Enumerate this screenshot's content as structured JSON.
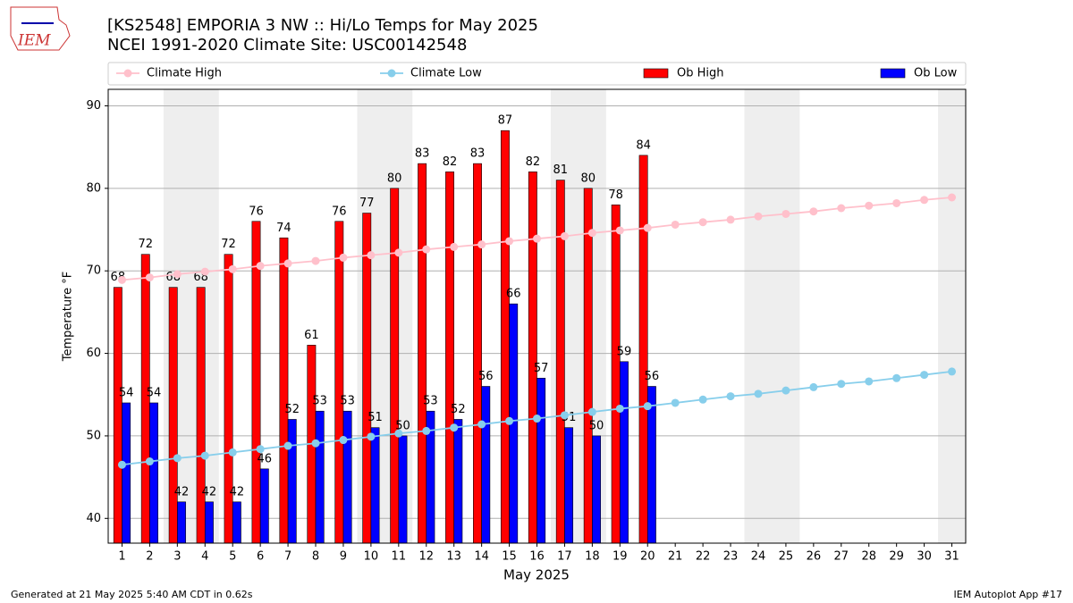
{
  "logo_text": "IEM",
  "footer_left": "Generated at 21 May 2025 5:40 AM CDT in 0.62s",
  "footer_right": "IEM Autoplot App #17",
  "chart_data": {
    "type": "bar",
    "title": "[KS2548] EMPORIA 3 NW :: Hi/Lo Temps for May 2025",
    "subtitle": "NCEI 1991-2020 Climate Site: USC00142548",
    "x_label": "May 2025",
    "y_label": "Temperature °F",
    "categories": [
      "1",
      "2",
      "3",
      "4",
      "5",
      "6",
      "7",
      "8",
      "9",
      "10",
      "11",
      "12",
      "13",
      "14",
      "15",
      "16",
      "17",
      "18",
      "19",
      "20",
      "21",
      "22",
      "23",
      "24",
      "25",
      "26",
      "27",
      "28",
      "29",
      "30",
      "31"
    ],
    "shaded_spans": [
      [
        3,
        4
      ],
      [
        10,
        11
      ],
      [
        17,
        18
      ],
      [
        24,
        25
      ],
      [
        31,
        31
      ]
    ],
    "series": [
      {
        "name": "Climate High",
        "kind": "line",
        "color": "#ffc0cb",
        "values": [
          68.9,
          69.2,
          69.6,
          69.9,
          70.2,
          70.6,
          70.9,
          71.2,
          71.6,
          71.9,
          72.2,
          72.6,
          72.9,
          73.2,
          73.6,
          73.9,
          74.2,
          74.6,
          74.9,
          75.2,
          75.6,
          75.9,
          76.2,
          76.6,
          76.9,
          77.2,
          77.6,
          77.9,
          78.2,
          78.6,
          78.9
        ]
      },
      {
        "name": "Climate Low",
        "kind": "line",
        "color": "#87ceeb",
        "values": [
          46.5,
          46.9,
          47.3,
          47.6,
          48.0,
          48.4,
          48.8,
          49.1,
          49.5,
          49.9,
          50.3,
          50.6,
          51.0,
          51.4,
          51.8,
          52.1,
          52.5,
          52.9,
          53.3,
          53.6,
          54.0,
          54.4,
          54.8,
          55.1,
          55.5,
          55.9,
          56.3,
          56.6,
          57.0,
          57.4,
          57.8
        ]
      },
      {
        "name": "Ob High",
        "kind": "bar",
        "color": "#ff0000",
        "values": [
          68,
          72,
          68,
          68,
          72,
          76,
          74,
          61,
          76,
          77,
          80,
          83,
          82,
          83,
          87,
          82,
          81,
          80,
          78,
          84,
          null,
          null,
          null,
          null,
          null,
          null,
          null,
          null,
          null,
          null,
          null
        ]
      },
      {
        "name": "Ob Low",
        "kind": "bar",
        "color": "#0000ff",
        "values": [
          54,
          54,
          42,
          42,
          42,
          46,
          52,
          53,
          53,
          51,
          50,
          53,
          52,
          56,
          66,
          57,
          51,
          50,
          59,
          56,
          null,
          null,
          null,
          null,
          null,
          null,
          null,
          null,
          null,
          null,
          null
        ]
      }
    ],
    "ylim": [
      37,
      92
    ],
    "yticks": [
      40,
      50,
      60,
      70,
      80,
      90
    ],
    "grid": true
  }
}
